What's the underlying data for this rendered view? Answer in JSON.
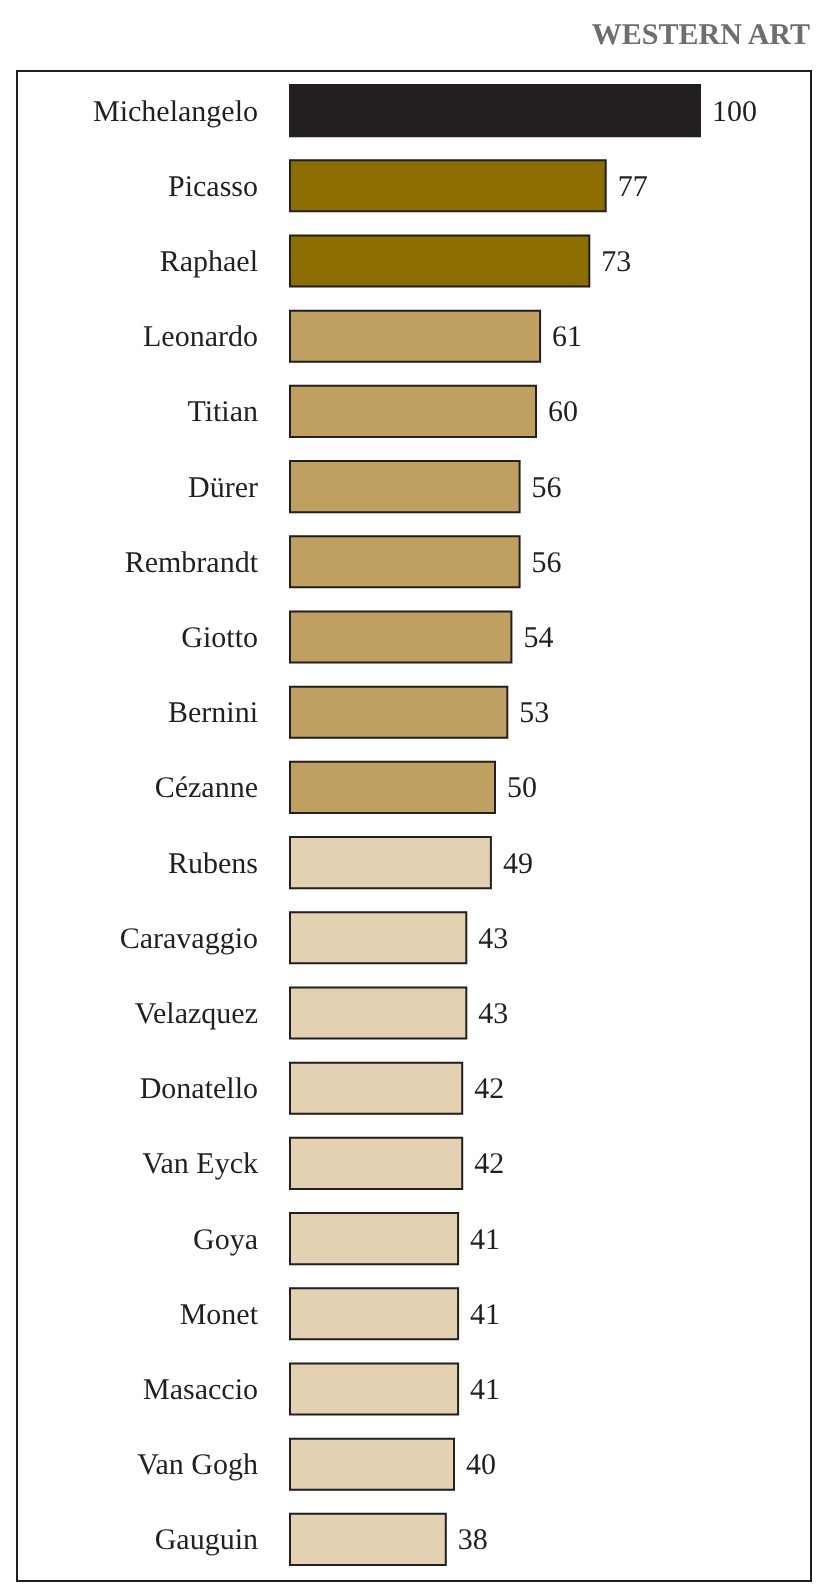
{
  "chart_data": {
    "type": "bar",
    "orientation": "horizontal",
    "title": "WESTERN ART",
    "categories": [
      "Michelangelo",
      "Picasso",
      "Raphael",
      "Leonardo",
      "Titian",
      "Dürer",
      "Rembrandt",
      "Giotto",
      "Bernini",
      "Cézanne",
      "Rubens",
      "Caravaggio",
      "Velazquez",
      "Donatello",
      "Van Eyck",
      "Goya",
      "Monet",
      "Masaccio",
      "Van Gogh",
      "Gauguin"
    ],
    "values": [
      100,
      77,
      73,
      61,
      60,
      56,
      56,
      54,
      53,
      50,
      49,
      43,
      43,
      42,
      42,
      41,
      41,
      41,
      40,
      38
    ],
    "colors": [
      "#231f20",
      "#8c6d00",
      "#8c6d00",
      "#bfa060",
      "#bfa060",
      "#bfa060",
      "#bfa060",
      "#bfa060",
      "#bfa060",
      "#bfa060",
      "#e3d1b1",
      "#e3d1b1",
      "#e3d1b1",
      "#e3d1b1",
      "#e3d1b1",
      "#e3d1b1",
      "#e3d1b1",
      "#e3d1b1",
      "#e3d1b1",
      "#e3d1b1"
    ],
    "data_labels": true
  }
}
